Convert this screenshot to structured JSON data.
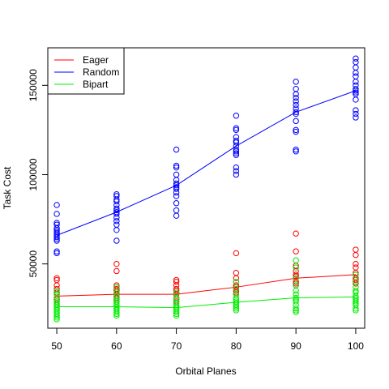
{
  "chart_data": {
    "type": "scatter",
    "xlabel": "Orbital Planes",
    "ylabel": "Task Cost",
    "x_ticks": [
      "50",
      "60",
      "70",
      "80",
      "90",
      "100"
    ],
    "y_ticks": [
      "50000",
      "100000",
      "150000"
    ],
    "xlim": [
      48.5,
      101.5
    ],
    "ylim": [
      14000,
      171000
    ],
    "legend_position": "top-left",
    "series": [
      {
        "name": "Eager",
        "color": "#ff0000",
        "line": [
          [
            50,
            32000
          ],
          [
            60,
            33000
          ],
          [
            70,
            33000
          ],
          [
            80,
            37000
          ],
          [
            90,
            42000
          ],
          [
            100,
            44000
          ]
        ],
        "points": [
          [
            50,
            42000
          ],
          [
            50,
            41000
          ],
          [
            50,
            38000
          ],
          [
            50,
            36000
          ],
          [
            50,
            34000
          ],
          [
            50,
            33000
          ],
          [
            50,
            31000
          ],
          [
            50,
            30000
          ],
          [
            50,
            29000
          ],
          [
            50,
            27000
          ],
          [
            60,
            50000
          ],
          [
            60,
            46000
          ],
          [
            60,
            38000
          ],
          [
            60,
            37000
          ],
          [
            60,
            36000
          ],
          [
            60,
            35000
          ],
          [
            60,
            33000
          ],
          [
            60,
            31000
          ],
          [
            60,
            30000
          ],
          [
            60,
            29000
          ],
          [
            70,
            41000
          ],
          [
            70,
            40000
          ],
          [
            70,
            38000
          ],
          [
            70,
            36000
          ],
          [
            70,
            35000
          ],
          [
            70,
            34000
          ],
          [
            70,
            33000
          ],
          [
            70,
            31000
          ],
          [
            70,
            30000
          ],
          [
            70,
            29000
          ],
          [
            80,
            56000
          ],
          [
            80,
            45000
          ],
          [
            80,
            42000
          ],
          [
            80,
            40000
          ],
          [
            80,
            38000
          ],
          [
            80,
            37000
          ],
          [
            80,
            36000
          ],
          [
            80,
            35000
          ],
          [
            80,
            34000
          ],
          [
            80,
            33000
          ],
          [
            90,
            67000
          ],
          [
            90,
            57000
          ],
          [
            90,
            49000
          ],
          [
            90,
            46000
          ],
          [
            90,
            44000
          ],
          [
            90,
            43000
          ],
          [
            90,
            42000
          ],
          [
            90,
            40000
          ],
          [
            90,
            39000
          ],
          [
            90,
            38000
          ],
          [
            100,
            58000
          ],
          [
            100,
            55000
          ],
          [
            100,
            50000
          ],
          [
            100,
            48000
          ],
          [
            100,
            45000
          ],
          [
            100,
            44000
          ],
          [
            100,
            42000
          ],
          [
            100,
            41000
          ],
          [
            100,
            40000
          ],
          [
            100,
            39000
          ]
        ]
      },
      {
        "name": "Random",
        "color": "#0000ff",
        "line": [
          [
            50,
            66000
          ],
          [
            60,
            79000
          ],
          [
            70,
            94000
          ],
          [
            80,
            116000
          ],
          [
            90,
            135000
          ],
          [
            100,
            147000
          ]
        ],
        "points": [
          [
            50,
            83000
          ],
          [
            50,
            78000
          ],
          [
            50,
            73000
          ],
          [
            50,
            72000
          ],
          [
            50,
            70000
          ],
          [
            50,
            69000
          ],
          [
            50,
            68000
          ],
          [
            50,
            67000
          ],
          [
            50,
            66000
          ],
          [
            50,
            65000
          ],
          [
            50,
            64000
          ],
          [
            50,
            63000
          ],
          [
            50,
            57000
          ],
          [
            50,
            56000
          ],
          [
            60,
            89000
          ],
          [
            60,
            88000
          ],
          [
            60,
            86000
          ],
          [
            60,
            85000
          ],
          [
            60,
            83000
          ],
          [
            60,
            81000
          ],
          [
            60,
            80000
          ],
          [
            60,
            79000
          ],
          [
            60,
            78000
          ],
          [
            60,
            76000
          ],
          [
            60,
            74000
          ],
          [
            60,
            72000
          ],
          [
            60,
            69000
          ],
          [
            60,
            63000
          ],
          [
            70,
            114000
          ],
          [
            70,
            105000
          ],
          [
            70,
            104000
          ],
          [
            70,
            100000
          ],
          [
            70,
            97000
          ],
          [
            70,
            95000
          ],
          [
            70,
            94000
          ],
          [
            70,
            93000
          ],
          [
            70,
            92000
          ],
          [
            70,
            90000
          ],
          [
            70,
            88000
          ],
          [
            70,
            84000
          ],
          [
            70,
            80000
          ],
          [
            70,
            77000
          ],
          [
            80,
            133000
          ],
          [
            80,
            126000
          ],
          [
            80,
            125000
          ],
          [
            80,
            121000
          ],
          [
            80,
            119000
          ],
          [
            80,
            118000
          ],
          [
            80,
            116000
          ],
          [
            80,
            114000
          ],
          [
            80,
            113000
          ],
          [
            80,
            112000
          ],
          [
            80,
            111000
          ],
          [
            80,
            104000
          ],
          [
            80,
            102000
          ],
          [
            80,
            100000
          ],
          [
            90,
            152000
          ],
          [
            90,
            148000
          ],
          [
            90,
            145000
          ],
          [
            90,
            143000
          ],
          [
            90,
            141000
          ],
          [
            90,
            139000
          ],
          [
            90,
            137000
          ],
          [
            90,
            135000
          ],
          [
            90,
            134000
          ],
          [
            90,
            130000
          ],
          [
            90,
            125000
          ],
          [
            90,
            124000
          ],
          [
            90,
            114000
          ],
          [
            90,
            113000
          ],
          [
            100,
            165000
          ],
          [
            100,
            163000
          ],
          [
            100,
            160000
          ],
          [
            100,
            157000
          ],
          [
            100,
            155000
          ],
          [
            100,
            152000
          ],
          [
            100,
            150000
          ],
          [
            100,
            148000
          ],
          [
            100,
            147000
          ],
          [
            100,
            146000
          ],
          [
            100,
            145000
          ],
          [
            100,
            142000
          ],
          [
            100,
            136000
          ],
          [
            100,
            134000
          ],
          [
            100,
            132000
          ]
        ]
      },
      {
        "name": "Bipart",
        "color": "#00ee00",
        "line": [
          [
            50,
            26000
          ],
          [
            60,
            26000
          ],
          [
            70,
            25500
          ],
          [
            80,
            28500
          ],
          [
            90,
            31000
          ],
          [
            100,
            31500
          ]
        ],
        "points": [
          [
            50,
            35000
          ],
          [
            50,
            33000
          ],
          [
            50,
            31000
          ],
          [
            50,
            29000
          ],
          [
            50,
            28000
          ],
          [
            50,
            27000
          ],
          [
            50,
            26000
          ],
          [
            50,
            25000
          ],
          [
            50,
            24000
          ],
          [
            50,
            23000
          ],
          [
            50,
            22000
          ],
          [
            50,
            21000
          ],
          [
            50,
            20000
          ],
          [
            50,
            19000
          ],
          [
            60,
            37000
          ],
          [
            60,
            34000
          ],
          [
            60,
            32000
          ],
          [
            60,
            30000
          ],
          [
            60,
            29000
          ],
          [
            60,
            28000
          ],
          [
            60,
            27000
          ],
          [
            60,
            26000
          ],
          [
            60,
            25000
          ],
          [
            60,
            24000
          ],
          [
            60,
            23000
          ],
          [
            60,
            22000
          ],
          [
            60,
            21000
          ],
          [
            70,
            34000
          ],
          [
            70,
            31000
          ],
          [
            70,
            30000
          ],
          [
            70,
            28000
          ],
          [
            70,
            27000
          ],
          [
            70,
            26000
          ],
          [
            70,
            25000
          ],
          [
            70,
            24000
          ],
          [
            70,
            23000
          ],
          [
            70,
            22000
          ],
          [
            70,
            21000
          ],
          [
            80,
            40000
          ],
          [
            80,
            36000
          ],
          [
            80,
            33000
          ],
          [
            80,
            31000
          ],
          [
            80,
            30000
          ],
          [
            80,
            29000
          ],
          [
            80,
            28000
          ],
          [
            80,
            27000
          ],
          [
            80,
            26000
          ],
          [
            80,
            25000
          ],
          [
            80,
            24000
          ],
          [
            90,
            52000
          ],
          [
            90,
            48000
          ],
          [
            90,
            42000
          ],
          [
            90,
            38000
          ],
          [
            90,
            35000
          ],
          [
            90,
            33000
          ],
          [
            90,
            31000
          ],
          [
            90,
            30000
          ],
          [
            90,
            29000
          ],
          [
            90,
            27000
          ],
          [
            90,
            25000
          ],
          [
            90,
            24000
          ],
          [
            90,
            23000
          ],
          [
            100,
            44000
          ],
          [
            100,
            40000
          ],
          [
            100,
            37000
          ],
          [
            100,
            35000
          ],
          [
            100,
            34000
          ],
          [
            100,
            32000
          ],
          [
            100,
            31000
          ],
          [
            100,
            30000
          ],
          [
            100,
            29000
          ],
          [
            100,
            28000
          ],
          [
            100,
            27000
          ],
          [
            100,
            25000
          ],
          [
            100,
            24000
          ]
        ]
      }
    ]
  }
}
